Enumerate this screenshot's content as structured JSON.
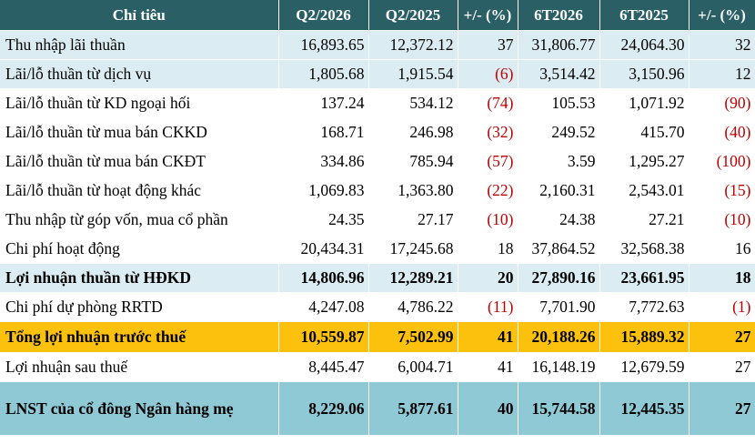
{
  "header": [
    "Chỉ tiêu",
    "Q2/2026",
    "Q2/2025",
    "+/- (%)",
    "6T2026",
    "6T2025",
    "+/- (%)"
  ],
  "rows": [
    {
      "style": "blue",
      "bold": false,
      "cells": [
        "Thu nhập lãi thuần",
        "16,893.65",
        "12,372.12",
        "37",
        "31,806.77",
        "24,064.30",
        "32"
      ],
      "neg": [
        false,
        false
      ]
    },
    {
      "style": "blue",
      "bold": false,
      "cells": [
        "Lãi/lỗ thuần từ dịch vụ",
        "1,805.68",
        "1,915.54",
        "(6)",
        "3,514.42",
        "3,150.96",
        "12"
      ],
      "neg": [
        true,
        false
      ]
    },
    {
      "style": "white",
      "bold": false,
      "cells": [
        "Lãi/lỗ thuần từ KD ngoại hối",
        "137.24",
        "534.12",
        "(74)",
        "105.53",
        "1,071.92",
        "(90)"
      ],
      "neg": [
        true,
        true
      ]
    },
    {
      "style": "white",
      "bold": false,
      "cells": [
        "Lãi/lỗ thuần từ mua bán CKKD",
        "168.71",
        "246.98",
        "(32)",
        "249.52",
        "415.70",
        "(40)"
      ],
      "neg": [
        true,
        true
      ]
    },
    {
      "style": "white",
      "bold": false,
      "cells": [
        "Lãi/lỗ thuần từ mua bán CKĐT",
        "334.86",
        "785.94",
        "(57)",
        "3.59",
        "1,295.27",
        "(100)"
      ],
      "neg": [
        true,
        true
      ]
    },
    {
      "style": "white",
      "bold": false,
      "cells": [
        "Lãi/lỗ thuần từ hoạt động khác",
        "1,069.83",
        "1,363.80",
        "(22)",
        "2,160.31",
        "2,543.01",
        "(15)"
      ],
      "neg": [
        true,
        true
      ]
    },
    {
      "style": "white",
      "bold": false,
      "cells": [
        "Thu nhập từ góp vốn, mua cổ phần",
        "24.35",
        "27.17",
        "(10)",
        "24.38",
        "27.21",
        "(10)"
      ],
      "neg": [
        true,
        true
      ]
    },
    {
      "style": "white",
      "bold": false,
      "cells": [
        "Chi phí hoạt động",
        "20,434.31",
        "17,245.68",
        "18",
        "37,864.52",
        "32,568.38",
        "16"
      ],
      "neg": [
        false,
        false
      ]
    },
    {
      "style": "blue",
      "bold": true,
      "cells": [
        "Lợi nhuận thuần từ HĐKD",
        "14,806.96",
        "12,289.21",
        "20",
        "27,890.16",
        "23,661.95",
        "18"
      ],
      "neg": [
        false,
        false
      ]
    },
    {
      "style": "white",
      "bold": false,
      "cells": [
        "Chi phí dự phòng RRTD",
        "4,247.08",
        "4,786.22",
        "(11)",
        "7,701.90",
        "7,772.63",
        "(1)"
      ],
      "neg": [
        true,
        true
      ]
    },
    {
      "style": "orange",
      "bold": true,
      "cells": [
        "Tổng lợi nhuận trước thuế",
        "10,559.87",
        "7,502.99",
        "41",
        "20,188.26",
        "15,889.32",
        "27"
      ],
      "neg": [
        false,
        false
      ]
    },
    {
      "style": "white",
      "bold": false,
      "cells": [
        "Lợi nhuận sau thuế",
        "8,445.47",
        "6,004.71",
        "41",
        "16,148.19",
        "12,679.59",
        "27"
      ],
      "neg": [
        false,
        false
      ]
    },
    {
      "style": "teal",
      "bold": true,
      "cells": [
        "LNST của cổ đông Ngân hàng mẹ",
        "8,229.06",
        "5,877.61",
        "40",
        "15,744.58",
        "12,445.35",
        "27"
      ],
      "neg": [
        false,
        false
      ]
    }
  ]
}
